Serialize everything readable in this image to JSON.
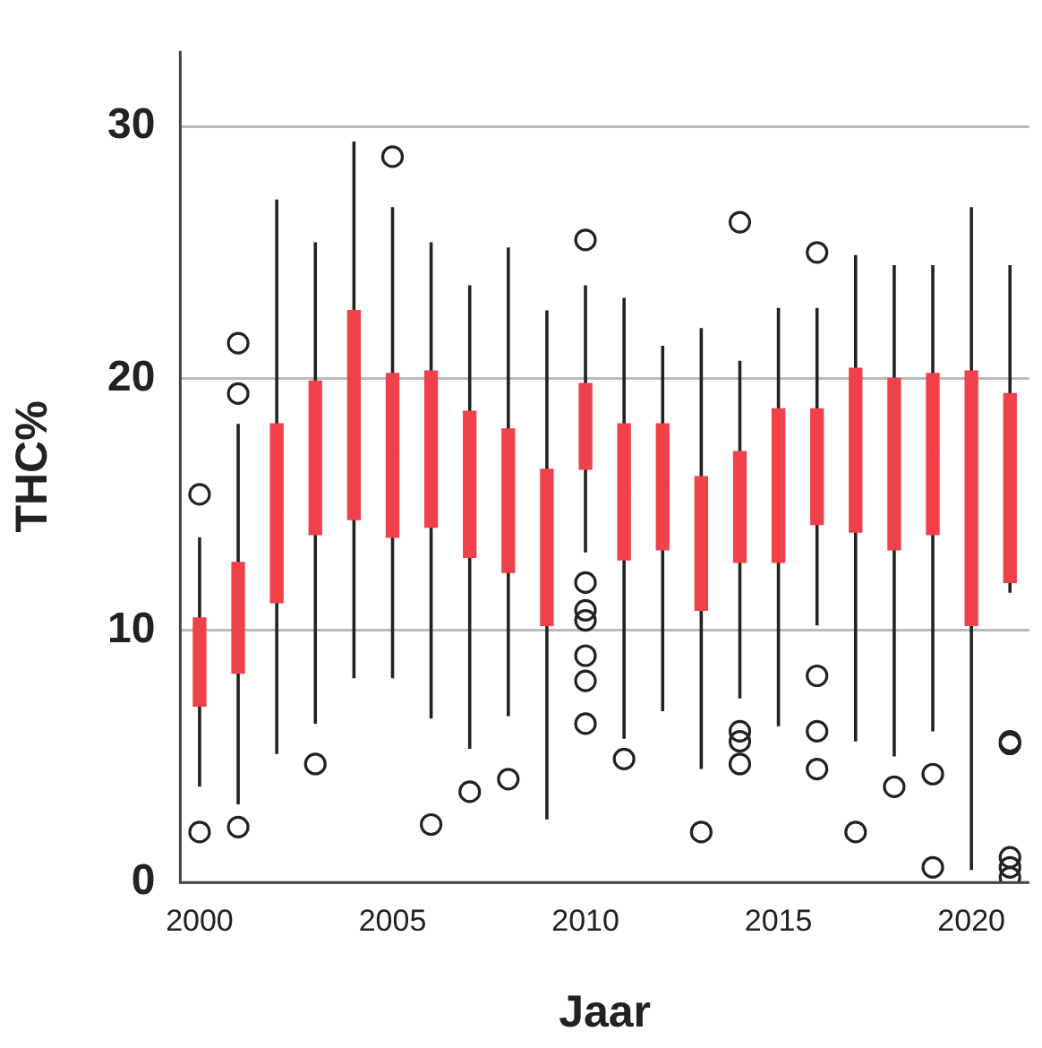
{
  "chart_data": {
    "type": "box",
    "xlabel": "Jaar",
    "ylabel": "THC%",
    "categories": [
      "2000",
      null,
      null,
      null,
      null,
      "2005",
      null,
      null,
      null,
      null,
      "2010",
      null,
      null,
      null,
      null,
      "2015",
      null,
      null,
      null,
      null,
      "2020",
      null
    ],
    "color": "#f0404a",
    "ylim": [
      0,
      33
    ],
    "yticks": [
      0,
      10,
      20,
      30
    ],
    "grid": "y",
    "legend": false,
    "boxes": [
      {
        "low": 3.8,
        "q1": 7.0,
        "median": 8.7,
        "q3": 10.5,
        "high": 13.7,
        "outliers": [
          15.4,
          2.0
        ]
      },
      {
        "low": 3.1,
        "q1": 8.3,
        "median": 10.5,
        "q3": 12.7,
        "high": 18.2,
        "outliers": [
          21.4,
          19.4,
          2.2
        ]
      },
      {
        "low": 5.1,
        "q1": 11.1,
        "median": 14.6,
        "q3": 18.2,
        "high": 27.1
      },
      {
        "low": 6.3,
        "q1": 13.8,
        "median": 16.8,
        "q3": 19.9,
        "high": 25.4,
        "outliers": [
          4.7
        ]
      },
      {
        "low": 8.1,
        "q1": 14.4,
        "median": 18.5,
        "q3": 22.7,
        "high": 29.4
      },
      {
        "low": 8.1,
        "q1": 13.7,
        "median": 17.0,
        "q3": 20.2,
        "high": 26.8,
        "outliers": [
          28.8
        ]
      },
      {
        "low": 6.5,
        "q1": 14.1,
        "median": 17.2,
        "q3": 20.3,
        "high": 25.4,
        "outliers": [
          2.3
        ]
      },
      {
        "low": 5.3,
        "q1": 12.9,
        "median": 15.8,
        "q3": 18.7,
        "high": 23.7,
        "outliers": [
          3.6
        ]
      },
      {
        "low": 6.6,
        "q1": 12.3,
        "median": 15.1,
        "q3": 18.0,
        "high": 25.2,
        "outliers": [
          4.1
        ]
      },
      {
        "low": 2.5,
        "q1": 10.2,
        "median": 13.3,
        "q3": 16.4,
        "high": 22.7
      },
      {
        "low": 13.1,
        "q1": 16.4,
        "median": 18.1,
        "q3": 19.8,
        "high": 23.7,
        "outliers": [
          25.5,
          11.9,
          10.8,
          10.4,
          9.0,
          8.0,
          6.3
        ]
      },
      {
        "low": 5.7,
        "q1": 12.8,
        "median": 15.5,
        "q3": 18.2,
        "high": 23.2,
        "outliers": [
          4.9
        ]
      },
      {
        "low": 6.8,
        "q1": 13.2,
        "median": 15.7,
        "q3": 18.2,
        "high": 21.3
      },
      {
        "low": 4.5,
        "q1": 10.8,
        "median": 13.5,
        "q3": 16.1,
        "high": 22.0,
        "outliers": [
          2.0
        ]
      },
      {
        "low": 7.3,
        "q1": 12.7,
        "median": 14.9,
        "q3": 17.1,
        "high": 20.7,
        "outliers": [
          26.2,
          6.0,
          5.6,
          4.7
        ]
      },
      {
        "low": 6.2,
        "q1": 12.7,
        "median": 15.8,
        "q3": 18.8,
        "high": 22.8
      },
      {
        "low": 10.2,
        "q1": 14.2,
        "median": 16.5,
        "q3": 18.8,
        "high": 22.8,
        "outliers": [
          25.0,
          8.2,
          6.0,
          4.5
        ]
      },
      {
        "low": 5.6,
        "q1": 13.9,
        "median": 17.2,
        "q3": 20.4,
        "high": 24.9,
        "outliers": [
          2.0
        ]
      },
      {
        "low": 5.0,
        "q1": 13.2,
        "median": 16.6,
        "q3": 20.0,
        "high": 24.5,
        "outliers": [
          3.8
        ]
      },
      {
        "low": 6.0,
        "q1": 13.8,
        "median": 17.0,
        "q3": 20.2,
        "high": 24.5,
        "outliers": [
          4.3,
          0.6
        ]
      },
      {
        "low": 0.5,
        "q1": 10.2,
        "median": 15.3,
        "q3": 20.3,
        "high": 26.8
      },
      {
        "low": 11.5,
        "q1": 11.9,
        "median": 15.7,
        "q3": 19.4,
        "high": 24.5,
        "outliers": [
          5.6,
          5.5,
          1.0,
          0.6,
          0.2
        ]
      }
    ]
  }
}
